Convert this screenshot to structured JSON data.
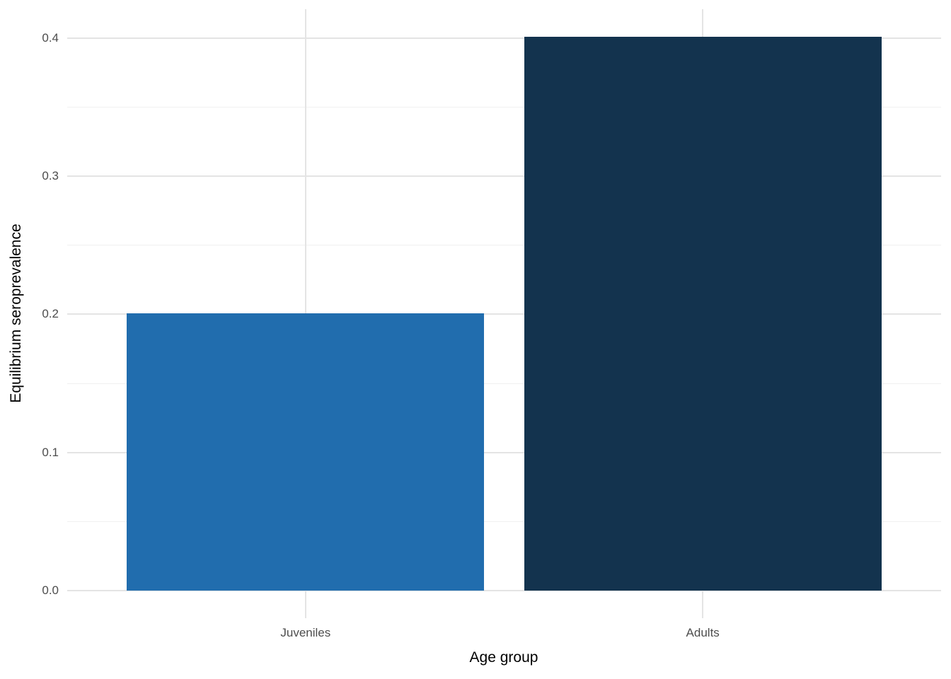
{
  "figure": {
    "background": "#ffffff"
  },
  "chart_data": {
    "type": "bar",
    "categories": [
      "Juveniles",
      "Adults"
    ],
    "values": [
      0.201,
      0.401
    ],
    "series": [
      {
        "name": "Equilibrium seroprevalence",
        "values": [
          0.201,
          0.401
        ]
      }
    ],
    "bar_colors": [
      "#216DAE",
      "#13334E"
    ],
    "title": "",
    "xlabel": "Age group",
    "ylabel": "Equilibrium seroprevalence",
    "ylim": [
      0,
      0.42
    ],
    "yticks": [
      "0.0",
      "0.1",
      "0.2",
      "0.3",
      "0.4"
    ],
    "ytick_values": [
      0,
      0.1,
      0.2,
      0.3,
      0.4
    ],
    "minor_ytick_values": [
      0.05,
      0.15,
      0.25,
      0.35
    ],
    "grid": "horizontal major and minor gridlines, vertical major gridlines at category centers",
    "legend_position": "none",
    "bar_width_fraction": 0.9,
    "colors": {
      "grid_major": "#E4E4E4",
      "grid_minor": "#F0F0F0",
      "axis_text": "#4D4D4D",
      "axis_title": "#000000",
      "panel_background": "#ffffff"
    }
  }
}
